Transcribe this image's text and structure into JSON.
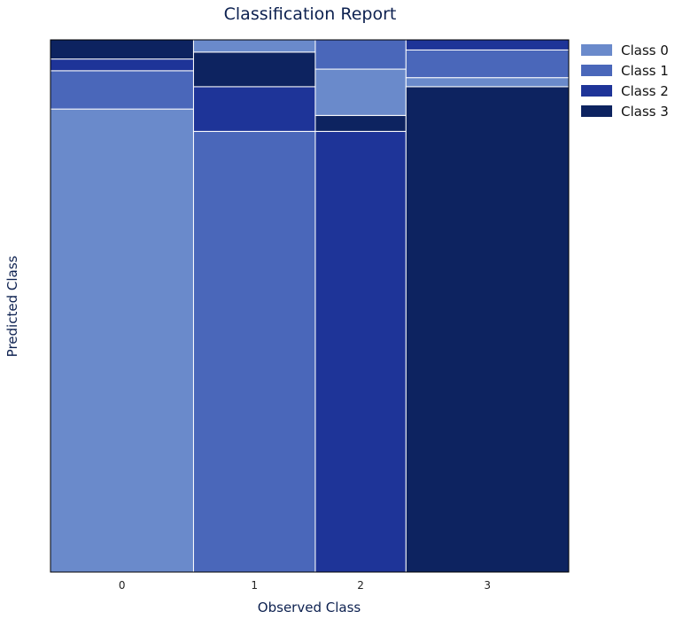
{
  "chart_data": {
    "type": "mosaic",
    "title": "Classification Report",
    "xlabel": "Observed Class",
    "ylabel": "Predicted Class",
    "categories": [
      "0",
      "1",
      "2",
      "3"
    ],
    "column_widths": [
      0.276,
      0.235,
      0.175,
      0.314
    ],
    "classes": [
      "Class 0",
      "Class 1",
      "Class 2",
      "Class 3"
    ],
    "colors": [
      "#6a8acb",
      "#4a67ba",
      "#1e3498",
      "#0d2360"
    ],
    "stacks": [
      {
        "observed": "0",
        "segments": [
          {
            "class": "Class 0",
            "share": 0.87
          },
          {
            "class": "Class 1",
            "share": 0.072
          },
          {
            "class": "Class 2",
            "share": 0.022
          },
          {
            "class": "Class 3",
            "share": 0.036
          }
        ]
      },
      {
        "observed": "1",
        "segments": [
          {
            "class": "Class 1",
            "share": 0.828
          },
          {
            "class": "Class 2",
            "share": 0.084
          },
          {
            "class": "Class 3",
            "share": 0.065
          },
          {
            "class": "Class 0",
            "share": 0.023
          }
        ]
      },
      {
        "observed": "2",
        "segments": [
          {
            "class": "Class 2",
            "share": 0.828
          },
          {
            "class": "Class 3",
            "share": 0.03
          },
          {
            "class": "Class 0",
            "share": 0.087
          },
          {
            "class": "Class 1",
            "share": 0.055
          }
        ]
      },
      {
        "observed": "3",
        "segments": [
          {
            "class": "Class 3",
            "share": 0.912
          },
          {
            "class": "Class 0",
            "share": 0.017
          },
          {
            "class": "Class 1",
            "share": 0.052
          },
          {
            "class": "Class 2",
            "share": 0.019
          }
        ]
      }
    ],
    "legend_position": "top-right, outside plot",
    "grid": false
  }
}
